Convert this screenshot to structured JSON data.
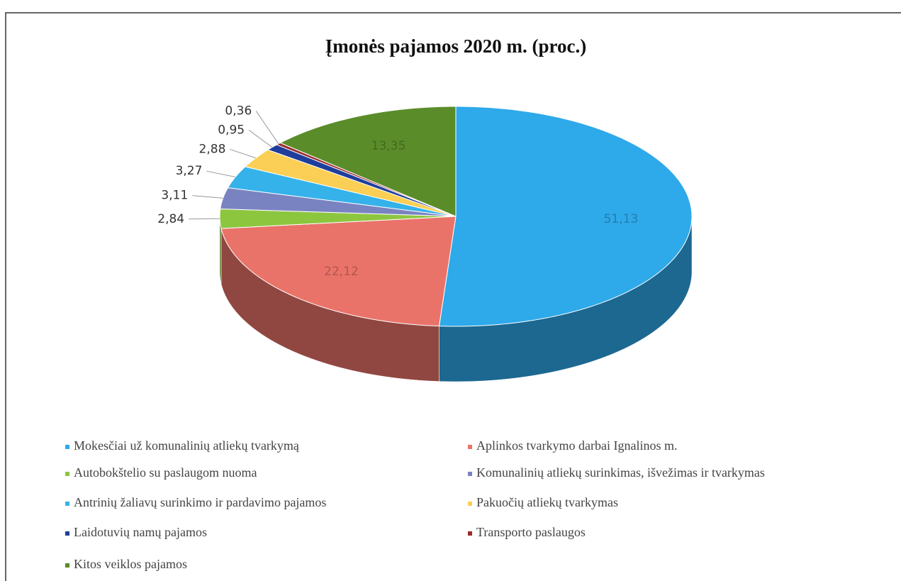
{
  "chart_data": {
    "type": "pie3d",
    "title": "Įmonės pajamos 2020 m. (proc.)",
    "categories": [
      "Mokesčiai už komunalinių atliekų tvarkymą",
      "Aplinkos tvarkymo darbai Ignalinos m.",
      "Autobokštelio su paslaugom nuoma",
      "Komunalinių atliekų surinkimas, išvežimas ir tvarkymas",
      "Antrinių žaliavų surinkimo ir pardavimo pajamos",
      "Pakuočių atliekų tvarkymas",
      "Laidotuvių namų pajamos",
      "Transporto paslaugos",
      "Kitos veiklos pajamos"
    ],
    "values": [
      51.13,
      22.12,
      2.84,
      3.11,
      3.27,
      2.88,
      0.95,
      0.36,
      13.35
    ],
    "value_labels": [
      "51,13",
      "22,12",
      "2,84",
      "3,11",
      "3,27",
      "2,88",
      "0,95",
      "0,36",
      "13,35"
    ],
    "colors": [
      "#2ea9ea",
      "#ea7369",
      "#8cc63f",
      "#7a83c2",
      "#35b2ea",
      "#fbcf55",
      "#1f3e9c",
      "#9c2b2b",
      "#5b8c2a"
    ],
    "legend": "bottom"
  }
}
